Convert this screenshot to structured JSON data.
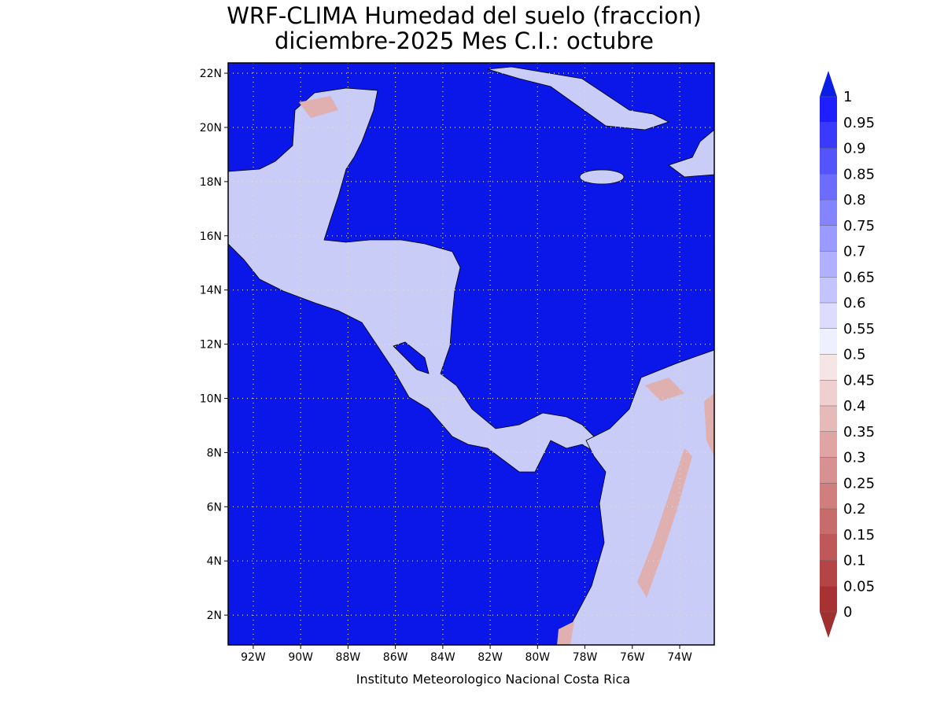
{
  "map": {
    "title": [
      "WRF-CLIMA Humedad del suelo (fraccion)",
      "diciembre-2025 Mes C.I.: octubre"
    ],
    "footer": "Instituto Meteorologico Nacional Costa Rica",
    "lon_range": [
      -93.06,
      -72.54
    ],
    "lat_range": [
      0.9,
      22.38
    ],
    "lat_ticks": [
      {
        "value": 22,
        "label": "22N"
      },
      {
        "value": 20,
        "label": "20N"
      },
      {
        "value": 18,
        "label": "18N"
      },
      {
        "value": 16,
        "label": "16N"
      },
      {
        "value": 14,
        "label": "14N"
      },
      {
        "value": 12,
        "label": "12N"
      },
      {
        "value": 10,
        "label": "10N"
      },
      {
        "value": 8,
        "label": "8N"
      },
      {
        "value": 6,
        "label": "6N"
      },
      {
        "value": 4,
        "label": "4N"
      },
      {
        "value": 2,
        "label": "2N"
      }
    ],
    "lon_ticks": [
      {
        "value": -92,
        "label": "92W"
      },
      {
        "value": -90,
        "label": "90W"
      },
      {
        "value": -88,
        "label": "88W"
      },
      {
        "value": -86,
        "label": "86W"
      },
      {
        "value": -84,
        "label": "84W"
      },
      {
        "value": -82,
        "label": "82W"
      },
      {
        "value": -80,
        "label": "80W"
      },
      {
        "value": -78,
        "label": "78W"
      },
      {
        "value": -76,
        "label": "76W"
      },
      {
        "value": -74,
        "label": "74W"
      }
    ],
    "colorbar": {
      "ticks": [
        0,
        0.05,
        0.1,
        0.15,
        0.2,
        0.25,
        0.3,
        0.35,
        0.4,
        0.45,
        0.5,
        0.55,
        0.6,
        0.65,
        0.7,
        0.75,
        0.8,
        0.85,
        0.9,
        0.95,
        1
      ],
      "colors": [
        "#a83232",
        "#b54444",
        "#bf5858",
        "#c86b6b",
        "#d07e7e",
        "#d89191",
        "#dfa5a5",
        "#e7baba",
        "#efcfcf",
        "#f6e5e5",
        "#eef0ff",
        "#dcdcff",
        "#c4c4ff",
        "#b0b0ff",
        "#9a9aff",
        "#8484ff",
        "#6c6cff",
        "#5454ff",
        "#3a3aff",
        "#1e1eff"
      ],
      "under_color": "#a03030",
      "over_color": "#0a1ee6"
    },
    "ocean_color": "#0b16e8"
  }
}
